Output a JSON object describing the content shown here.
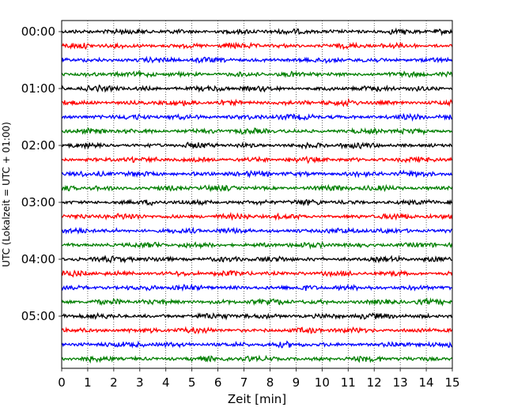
{
  "chart_data": {
    "type": "line",
    "description_type": "helicorder seismogram traces",
    "xlabel": "Zeit  [min]",
    "ylabel": "UTC (Lokalzeit = UTC + 01:00)",
    "xlim": [
      0,
      15
    ],
    "x_ticks": [
      "0",
      "1",
      "2",
      "3",
      "4",
      "5",
      "6",
      "7",
      "8",
      "9",
      "10",
      "11",
      "12",
      "13",
      "14",
      "15"
    ],
    "y_ticks": [
      {
        "label": "00:00",
        "row": 0
      },
      {
        "label": "01:00",
        "row": 4
      },
      {
        "label": "02:00",
        "row": 8
      },
      {
        "label": "03:00",
        "row": 12
      },
      {
        "label": "04:00",
        "row": 16
      },
      {
        "label": "05:00",
        "row": 20
      }
    ],
    "grid": "vertical dotted at each minute",
    "trace_count": 24,
    "trace_interval_minutes": 15,
    "trace_colors": [
      "#000000",
      "#ff0000",
      "#0000ff",
      "#007f00"
    ]
  }
}
